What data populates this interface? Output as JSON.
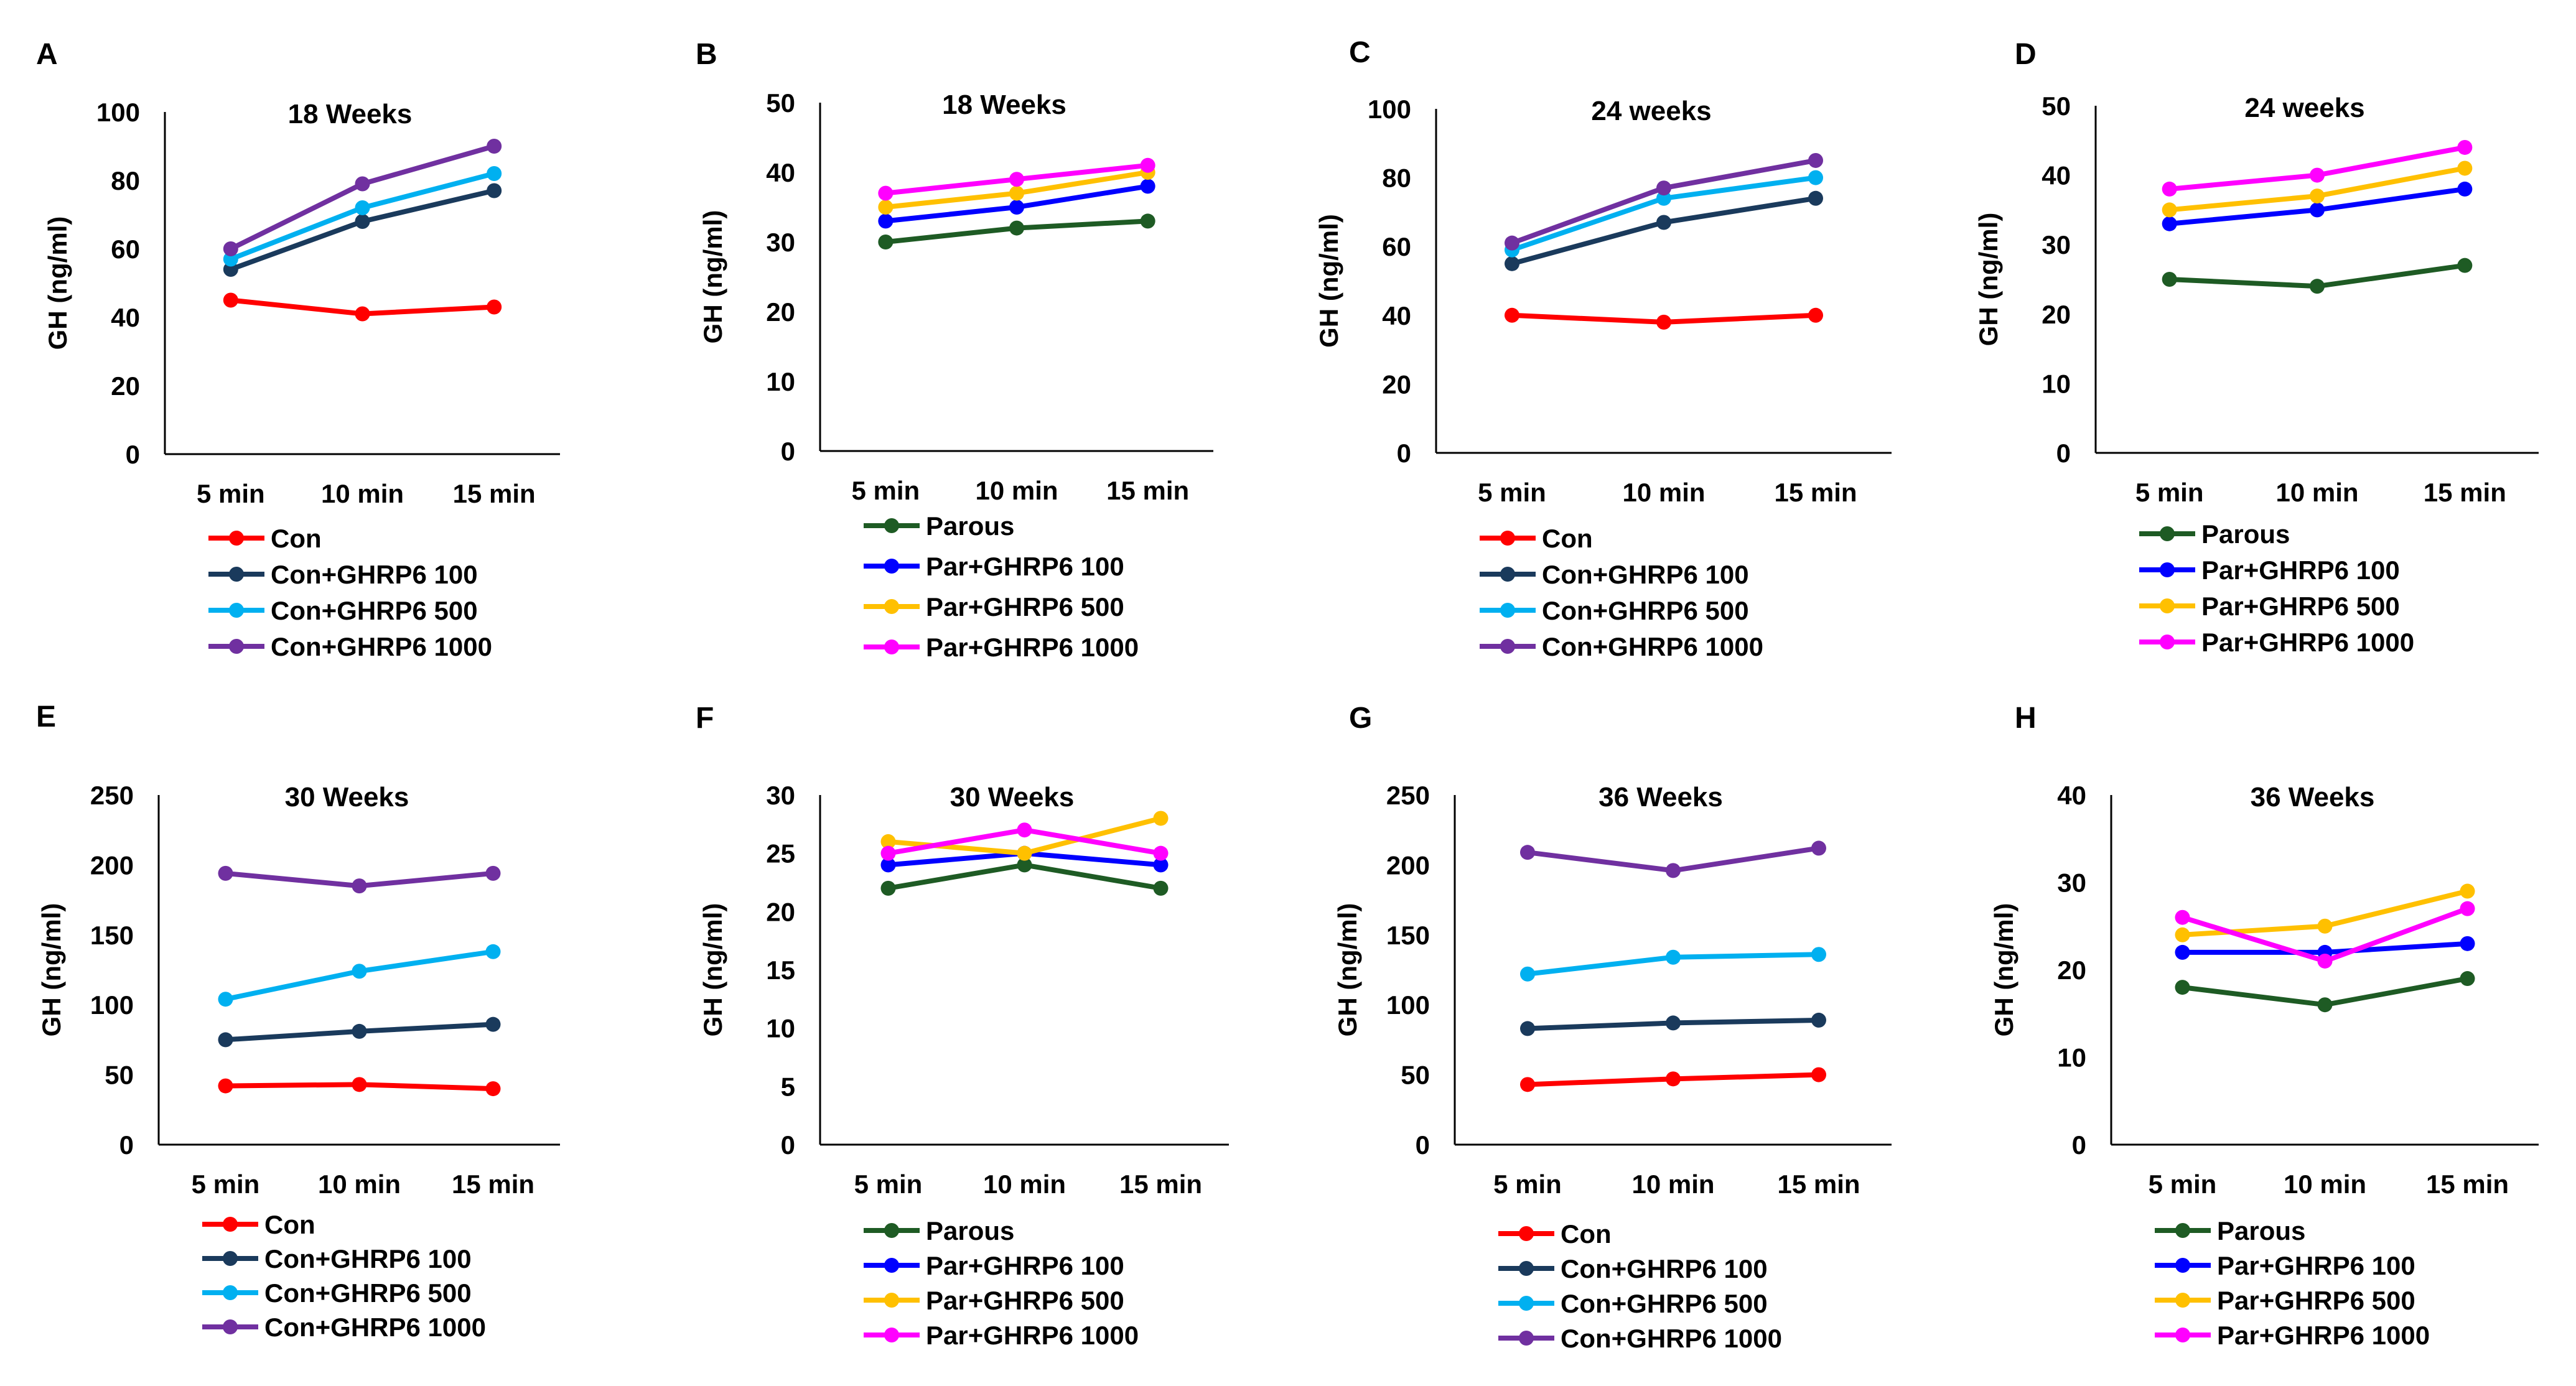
{
  "colors": {
    "con": "#ff0000",
    "parous": "#1e5b24",
    "ghrp6_100_con": "#1a3a5c",
    "ghrp6_100_par": "#0000ff",
    "ghrp6_500_con": "#00b0f0",
    "ghrp6_500_par": "#ffc000",
    "ghrp6_1000_con": "#7030a0",
    "ghrp6_1000_par": "#ff00ff"
  },
  "chart_data": [
    {
      "panel": "A",
      "type": "line",
      "title": "18 Weeks",
      "xlabel": "",
      "ylabel": "GH (ng/ml)",
      "categories": [
        "5 min",
        "10 min",
        "15 min"
      ],
      "ylim": [
        0,
        100
      ],
      "yticks": [
        "0",
        "20",
        "40",
        "60",
        "80",
        "100"
      ],
      "series": [
        {
          "name": "Con",
          "color": "#ff0000",
          "values": [
            45,
            41,
            43
          ]
        },
        {
          "name": "Con+GHRP6 100",
          "color": "#1a3a5c",
          "values": [
            54,
            68,
            77
          ]
        },
        {
          "name": "Con+GHRP6 500",
          "color": "#00b0f0",
          "values": [
            57,
            72,
            82
          ]
        },
        {
          "name": "Con+GHRP6 1000",
          "color": "#7030a0",
          "values": [
            60,
            79,
            90
          ]
        }
      ]
    },
    {
      "panel": "B",
      "type": "line",
      "title": "18 Weeks",
      "xlabel": "",
      "ylabel": "GH (ng/ml)",
      "categories": [
        "5 min",
        "10 min",
        "15 min"
      ],
      "ylim": [
        0,
        50
      ],
      "yticks": [
        "0",
        "10",
        "20",
        "30",
        "40",
        "50"
      ],
      "series": [
        {
          "name": "Parous",
          "color": "#1e5b24",
          "values": [
            30,
            32,
            33
          ]
        },
        {
          "name": "Par+GHRP6 100",
          "color": "#0000ff",
          "values": [
            33,
            35,
            38
          ]
        },
        {
          "name": "Par+GHRP6 500",
          "color": "#ffc000",
          "values": [
            35,
            37,
            40
          ]
        },
        {
          "name": "Par+GHRP6 1000",
          "color": "#ff00ff",
          "values": [
            37,
            39,
            41
          ]
        }
      ]
    },
    {
      "panel": "C",
      "type": "line",
      "title": "24 weeks",
      "xlabel": "",
      "ylabel": "GH (ng/ml)",
      "categories": [
        "5 min",
        "10 min",
        "15 min"
      ],
      "ylim": [
        0,
        100
      ],
      "yticks": [
        "0",
        "20",
        "40",
        "60",
        "80",
        "100"
      ],
      "series": [
        {
          "name": "Con",
          "color": "#ff0000",
          "values": [
            40,
            38,
            40
          ]
        },
        {
          "name": "Con+GHRP6 100",
          "color": "#1a3a5c",
          "values": [
            55,
            67,
            74
          ]
        },
        {
          "name": "Con+GHRP6 500",
          "color": "#00b0f0",
          "values": [
            59,
            74,
            80
          ]
        },
        {
          "name": "Con+GHRP6 1000",
          "color": "#7030a0",
          "values": [
            61,
            77,
            85
          ]
        }
      ]
    },
    {
      "panel": "D",
      "type": "line",
      "title": "24 weeks",
      "xlabel": "",
      "ylabel": "GH (ng/ml)",
      "categories": [
        "5 min",
        "10 min",
        "15 min"
      ],
      "ylim": [
        0,
        50
      ],
      "yticks": [
        "0",
        "10",
        "20",
        "30",
        "40",
        "50"
      ],
      "series": [
        {
          "name": "Parous",
          "color": "#1e5b24",
          "values": [
            25,
            24,
            27
          ]
        },
        {
          "name": "Par+GHRP6 100",
          "color": "#0000ff",
          "values": [
            33,
            35,
            38
          ]
        },
        {
          "name": "Par+GHRP6 500",
          "color": "#ffc000",
          "values": [
            35,
            37,
            41
          ]
        },
        {
          "name": "Par+GHRP6 1000",
          "color": "#ff00ff",
          "values": [
            38,
            40,
            44
          ]
        }
      ]
    },
    {
      "panel": "E",
      "type": "line",
      "title": "30 Weeks",
      "xlabel": "",
      "ylabel": "GH (ng/ml)",
      "categories": [
        "5 min",
        "10 min",
        "15 min"
      ],
      "ylim": [
        0,
        250
      ],
      "yticks": [
        "0",
        "50",
        "100",
        "150",
        "200",
        "250"
      ],
      "series": [
        {
          "name": "Con",
          "color": "#ff0000",
          "values": [
            42,
            43,
            40
          ]
        },
        {
          "name": "Con+GHRP6 100",
          "color": "#1a3a5c",
          "values": [
            75,
            81,
            86
          ]
        },
        {
          "name": "Con+GHRP6 500",
          "color": "#00b0f0",
          "values": [
            104,
            124,
            138
          ]
        },
        {
          "name": "Con+GHRP6 1000",
          "color": "#7030a0",
          "values": [
            194,
            185,
            194
          ]
        }
      ]
    },
    {
      "panel": "F",
      "type": "line",
      "title": "30 Weeks",
      "xlabel": "",
      "ylabel": "GH (ng/ml)",
      "categories": [
        "5 min",
        "10 min",
        "15 min"
      ],
      "ylim": [
        0,
        30
      ],
      "yticks": [
        "0",
        "5",
        "10",
        "15",
        "20",
        "25",
        "30"
      ],
      "series": [
        {
          "name": "Parous",
          "color": "#1e5b24",
          "values": [
            22,
            24,
            22
          ]
        },
        {
          "name": "Par+GHRP6 100",
          "color": "#0000ff",
          "values": [
            24,
            25,
            24
          ]
        },
        {
          "name": "Par+GHRP6 500",
          "color": "#ffc000",
          "values": [
            26,
            25,
            28
          ]
        },
        {
          "name": "Par+GHRP6 1000",
          "color": "#ff00ff",
          "values": [
            25,
            27,
            25
          ]
        }
      ]
    },
    {
      "panel": "G",
      "type": "line",
      "title": "36 Weeks",
      "xlabel": "",
      "ylabel": "GH (ng/ml)",
      "categories": [
        "5 min",
        "10 min",
        "15 min"
      ],
      "ylim": [
        0,
        250
      ],
      "yticks": [
        "0",
        "50",
        "100",
        "150",
        "200",
        "250"
      ],
      "series": [
        {
          "name": "Con",
          "color": "#ff0000",
          "values": [
            43,
            47,
            50
          ]
        },
        {
          "name": "Con+GHRP6 100",
          "color": "#1a3a5c",
          "values": [
            83,
            87,
            89
          ]
        },
        {
          "name": "Con+GHRP6 500",
          "color": "#00b0f0",
          "values": [
            122,
            134,
            136
          ]
        },
        {
          "name": "Con+GHRP6 1000",
          "color": "#7030a0",
          "values": [
            209,
            196,
            212
          ]
        }
      ]
    },
    {
      "panel": "H",
      "type": "line",
      "title": "36 Weeks",
      "xlabel": "",
      "ylabel": "GH (ng/ml)",
      "categories": [
        "5 min",
        "10 min",
        "15 min"
      ],
      "ylim": [
        0,
        40
      ],
      "yticks": [
        "0",
        "10",
        "20",
        "30",
        "40"
      ],
      "series": [
        {
          "name": "Parous",
          "color": "#1e5b24",
          "values": [
            18,
            16,
            19
          ]
        },
        {
          "name": "Par+GHRP6 100",
          "color": "#0000ff",
          "values": [
            22,
            22,
            23
          ]
        },
        {
          "name": "Par+GHRP6 500",
          "color": "#ffc000",
          "values": [
            24,
            25,
            29
          ]
        },
        {
          "name": "Par+GHRP6 1000",
          "color": "#ff00ff",
          "values": [
            26,
            21,
            27
          ]
        }
      ]
    }
  ]
}
